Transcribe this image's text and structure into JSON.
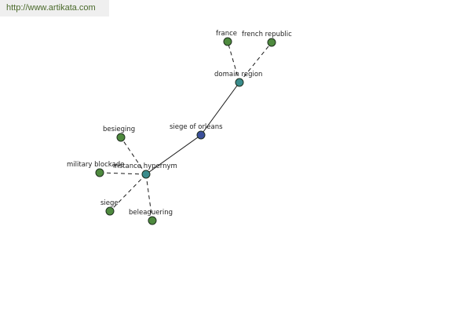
{
  "header": {
    "url_text": "http://www.artikata.com"
  },
  "colors": {
    "leaf": "#4e8a3e",
    "relation": "#3a8c8c",
    "root": "#3b4f9a"
  },
  "nodes": {
    "siege_of_orleans": {
      "label": "siege of orleans",
      "kind": "root"
    },
    "domain_region": {
      "label": "domain region",
      "kind": "relation"
    },
    "instance_hypernym": {
      "label": "instance hypernym",
      "kind": "relation"
    },
    "france": {
      "label": "france",
      "kind": "leaf"
    },
    "french_republic": {
      "label": "french republic",
      "kind": "leaf"
    },
    "besieging": {
      "label": "besieging",
      "kind": "leaf"
    },
    "military_blockade": {
      "label": "military blockade",
      "kind": "leaf"
    },
    "siege": {
      "label": "siege",
      "kind": "leaf"
    },
    "beleaguering": {
      "label": "beleaguering",
      "kind": "leaf"
    }
  },
  "edges": [
    {
      "from": "siege_of_orleans",
      "to": "domain_region",
      "style": "solid"
    },
    {
      "from": "siege_of_orleans",
      "to": "instance_hypernym",
      "style": "solid"
    },
    {
      "from": "domain_region",
      "to": "france",
      "style": "dashed"
    },
    {
      "from": "domain_region",
      "to": "french_republic",
      "style": "dashed"
    },
    {
      "from": "instance_hypernym",
      "to": "besieging",
      "style": "dashed"
    },
    {
      "from": "instance_hypernym",
      "to": "military_blockade",
      "style": "dashed"
    },
    {
      "from": "instance_hypernym",
      "to": "siege",
      "style": "dashed"
    },
    {
      "from": "instance_hypernym",
      "to": "beleaguering",
      "style": "dashed"
    }
  ]
}
